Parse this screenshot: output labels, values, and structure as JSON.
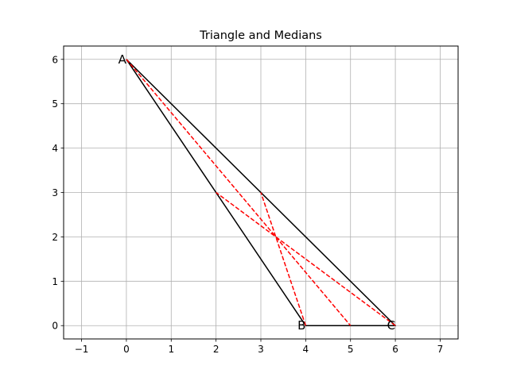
{
  "chart_data": {
    "type": "line",
    "title": "Triangle and Medians",
    "xlabel": "",
    "ylabel": "",
    "xlim": [
      -1.4,
      7.4
    ],
    "ylim": [
      -0.3,
      6.3
    ],
    "xticks": [
      -1,
      0,
      1,
      2,
      3,
      4,
      5,
      6,
      7
    ],
    "yticks": [
      0,
      1,
      2,
      3,
      4,
      5,
      6
    ],
    "grid": true,
    "legend": "none",
    "colors": {
      "triangle": "#000000",
      "median": "#ff0000",
      "grid": "#b0b0b0"
    },
    "vertices": [
      {
        "label": "A",
        "x": 0,
        "y": 6
      },
      {
        "label": "B",
        "x": 4,
        "y": 0
      },
      {
        "label": "C",
        "x": 6,
        "y": 0
      }
    ],
    "series": [
      {
        "style": "solid",
        "color": "#000000",
        "x": [
          0,
          4,
          6,
          0
        ],
        "y": [
          6,
          0,
          0,
          6
        ]
      },
      {
        "style": "dashed",
        "color": "#ff0000",
        "x": [
          0,
          5
        ],
        "y": [
          6,
          0
        ]
      },
      {
        "style": "dashed",
        "color": "#ff0000",
        "x": [
          4,
          3
        ],
        "y": [
          0,
          3
        ]
      },
      {
        "style": "dashed",
        "color": "#ff0000",
        "x": [
          6,
          2
        ],
        "y": [
          0,
          3
        ]
      }
    ]
  }
}
